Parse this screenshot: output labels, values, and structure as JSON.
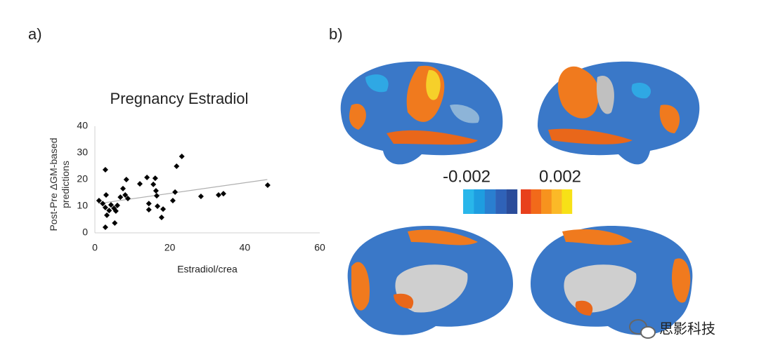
{
  "panels": [
    "a)",
    "b)"
  ],
  "chart_data": {
    "type": "scatter",
    "title": "Pregnancy Estradiol",
    "xlabel": "Estradiol/crea",
    "ylabel": "Post-Pre ΔGM-based predictions",
    "x": [
      1.1,
      2.1,
      2.8,
      3.0,
      2.8,
      3.2,
      2.8,
      3.8,
      4.3,
      5.1,
      5.3,
      5.6,
      6.0,
      6.8,
      7.5,
      8.1,
      8.4,
      8.8,
      12,
      13.9,
      14.4,
      14.4,
      15.6,
      16.1,
      16.3,
      16.5,
      16.7,
      17.8,
      18.2,
      20.8,
      21.4,
      21.8,
      23.2,
      28.3,
      33,
      34.3,
      46.1
    ],
    "values": [
      12.1,
      11,
      23.7,
      14.2,
      9.5,
      6.6,
      2.1,
      8.4,
      10.5,
      9.2,
      3.7,
      8.2,
      10.3,
      13.4,
      16.6,
      14.2,
      20,
      12.9,
      18.4,
      20.8,
      8.7,
      11,
      18.2,
      20.5,
      15.8,
      13.9,
      10,
      5.8,
      8.9,
      12.1,
      15.3,
      25,
      28.7,
      13.7,
      14.2,
      14.7,
      17.9
    ],
    "color": "#000000",
    "trendline": {
      "x": [
        1,
        46
      ],
      "values": [
        11,
        20
      ],
      "color": "#b0b0b0"
    },
    "xlim": [
      0,
      60
    ],
    "xticks": [
      0,
      20,
      40,
      60
    ],
    "ylim": [
      0,
      40
    ],
    "yticks": [
      0,
      10,
      20,
      30,
      40
    ]
  },
  "colorbar": {
    "min": -0.002,
    "max": 0.002,
    "cool_colors": [
      "#29b6ea",
      "#1e9de0",
      "#2a7fd0",
      "#2f62b8",
      "#2a4c9a"
    ],
    "warm_colors": [
      "#e8401c",
      "#f26a1a",
      "#f7931e",
      "#fbb927",
      "#f7e117"
    ]
  },
  "watermark": "思影科技"
}
